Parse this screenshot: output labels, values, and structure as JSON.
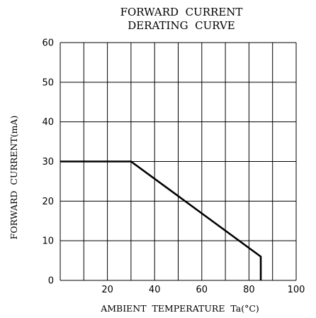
{
  "chart_data": {
    "type": "line",
    "title": [
      "FORWARD  CURRENT",
      "DERATING  CURVE"
    ],
    "xlabel": "AMBIENT  TEMPERATURE  Ta(°C)",
    "ylabel": "FORWARD  CURRENT(mA)",
    "xlim": [
      0,
      100
    ],
    "ylim": [
      0,
      60
    ],
    "x_tick_labels": [
      "20",
      "40",
      "60",
      "80",
      "100"
    ],
    "y_tick_labels": [
      "0",
      "10",
      "20",
      "30",
      "40",
      "50",
      "60"
    ],
    "grid": true,
    "series": [
      {
        "x": [
          0,
          30,
          85,
          85
        ],
        "y": [
          30,
          30,
          6,
          0
        ]
      }
    ]
  }
}
